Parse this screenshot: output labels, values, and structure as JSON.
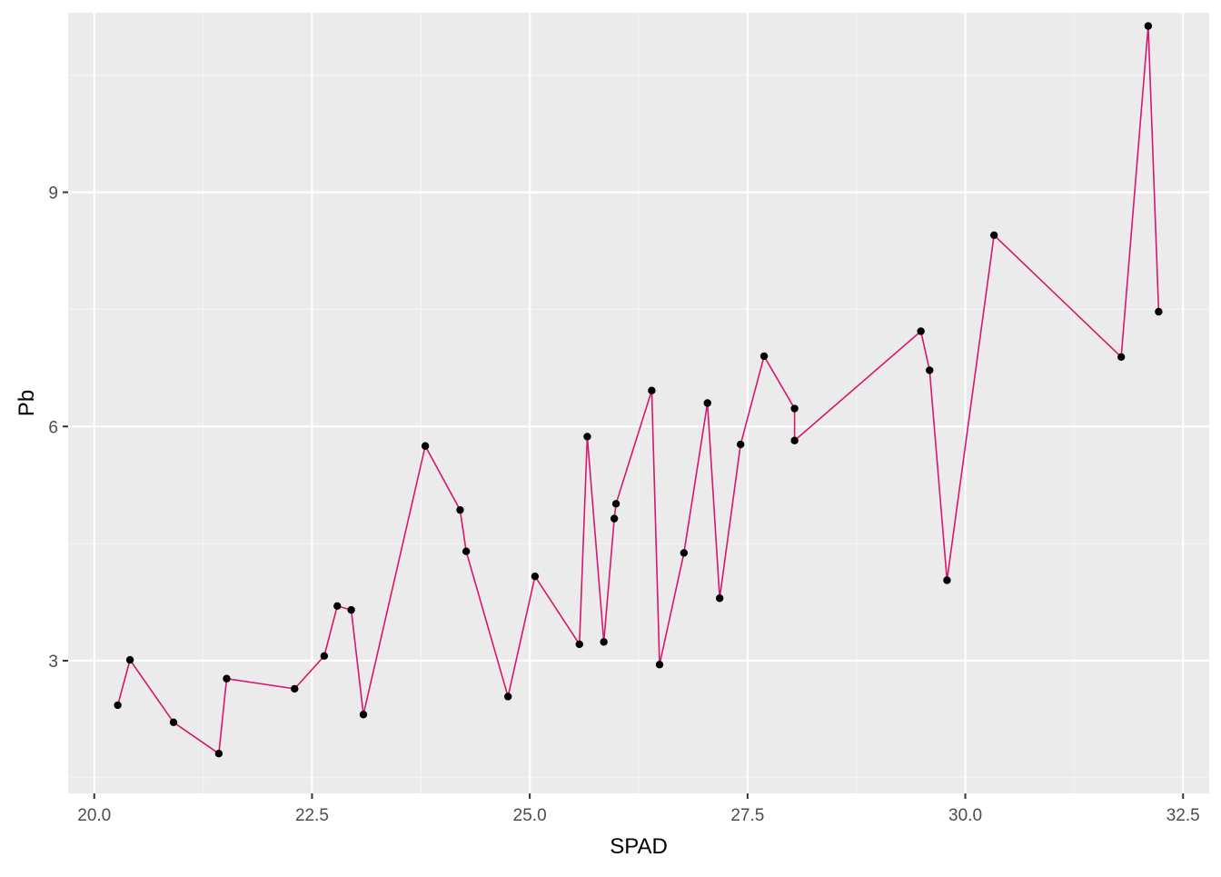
{
  "chart_data": {
    "type": "line",
    "title": "",
    "xlabel": "SPAD",
    "ylabel": "Pb",
    "xlim": [
      19.7,
      32.8
    ],
    "ylim": [
      1.3,
      11.3
    ],
    "x_ticks": [
      20.0,
      22.5,
      25.0,
      27.5,
      30.0,
      32.5
    ],
    "x_tick_labels": [
      "20.0",
      "22.5",
      "25.0",
      "27.5",
      "30.0",
      "32.5"
    ],
    "y_ticks": [
      3,
      6,
      9
    ],
    "y_tick_labels": [
      "3",
      "6",
      "9"
    ],
    "grid": true,
    "legend": "none",
    "colors": {
      "panel_background": "#EBEBEB",
      "grid_major": "#FFFFFF",
      "grid_minor": "#F5F5F5",
      "line": "#D6166F",
      "point": "#000000",
      "axis_text": "#4D4D4D",
      "axis_title": "#000000"
    },
    "series": [
      {
        "x": [
          20.27,
          20.41,
          20.91,
          21.43,
          21.52,
          22.3,
          22.64,
          22.79,
          22.95,
          23.09,
          23.8,
          24.2,
          24.27,
          24.75,
          25.06,
          25.57,
          25.66,
          25.85,
          25.97,
          25.99,
          26.4,
          26.49,
          26.77,
          27.04,
          27.18,
          27.42,
          27.69,
          28.04,
          28.04,
          29.49,
          29.59,
          29.79,
          30.33,
          31.79,
          32.1,
          32.22
        ],
        "y": [
          2.43,
          3.01,
          2.21,
          1.81,
          2.77,
          2.64,
          3.06,
          3.7,
          3.65,
          2.31,
          5.75,
          4.93,
          4.4,
          2.54,
          4.08,
          3.21,
          5.87,
          3.24,
          4.82,
          5.01,
          6.46,
          2.95,
          4.38,
          6.3,
          3.8,
          5.77,
          6.9,
          6.23,
          5.82,
          7.22,
          6.72,
          4.03,
          8.45,
          6.89,
          11.13,
          7.47
        ]
      }
    ]
  }
}
